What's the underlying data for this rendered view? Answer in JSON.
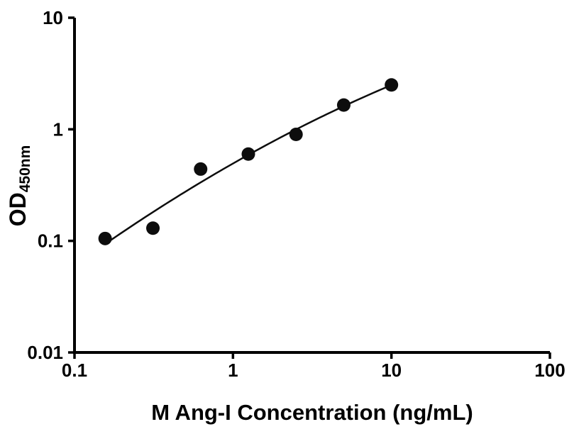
{
  "chart_data": {
    "type": "scatter",
    "title": "",
    "xlabel": "M Ang-I Concentration (ng/mL)",
    "ylabel_main": "OD",
    "ylabel_sub": "450nm",
    "x_scale": "log",
    "y_scale": "log",
    "xlim": [
      0.1,
      100
    ],
    "ylim": [
      0.01,
      10
    ],
    "x_ticks": [
      0.1,
      1,
      10,
      100
    ],
    "x_tick_labels": [
      "0.1",
      "1",
      "10",
      "100"
    ],
    "y_ticks": [
      0.01,
      0.1,
      1,
      10
    ],
    "y_tick_labels": [
      "0.01",
      "0.1",
      "1",
      "10"
    ],
    "series": [
      {
        "name": "standard-curve-points",
        "x": [
          0.156,
          0.3125,
          0.625,
          1.25,
          2.5,
          5,
          10
        ],
        "y": [
          0.105,
          0.13,
          0.44,
          0.6,
          0.9,
          1.65,
          2.5
        ]
      }
    ],
    "fit": "quadratic-log-log",
    "marker_color": "#0d0d0d",
    "line_color": "#0d0d0d",
    "axis_color": "#000000",
    "grid": false,
    "legend": false
  }
}
